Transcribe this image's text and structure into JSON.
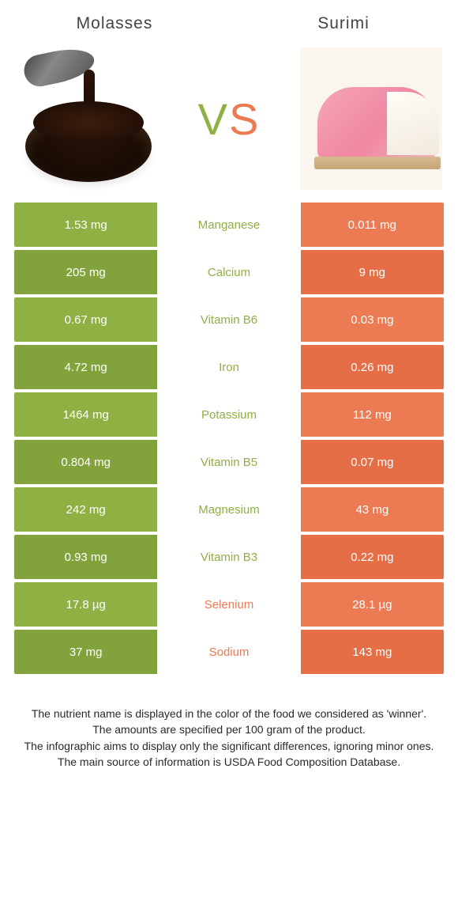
{
  "colors": {
    "left": "#8fb043",
    "left_dark": "#82a23c",
    "right": "#ec7a53",
    "right_dark": "#e56e46",
    "mid_left_text": "#8fb043",
    "mid_right_text": "#ec7a53"
  },
  "header": {
    "left_name": "Molasses",
    "right_name": "Surimi",
    "vs": "VS"
  },
  "rows": [
    {
      "nutrient": "Manganese",
      "left": "1.53 mg",
      "right": "0.011 mg",
      "winner": "left"
    },
    {
      "nutrient": "Calcium",
      "left": "205 mg",
      "right": "9 mg",
      "winner": "left"
    },
    {
      "nutrient": "Vitamin B6",
      "left": "0.67 mg",
      "right": "0.03 mg",
      "winner": "left"
    },
    {
      "nutrient": "Iron",
      "left": "4.72 mg",
      "right": "0.26 mg",
      "winner": "left"
    },
    {
      "nutrient": "Potassium",
      "left": "1464 mg",
      "right": "112 mg",
      "winner": "left"
    },
    {
      "nutrient": "Vitamin B5",
      "left": "0.804 mg",
      "right": "0.07 mg",
      "winner": "left"
    },
    {
      "nutrient": "Magnesium",
      "left": "242 mg",
      "right": "43 mg",
      "winner": "left"
    },
    {
      "nutrient": "Vitamin B3",
      "left": "0.93 mg",
      "right": "0.22 mg",
      "winner": "left"
    },
    {
      "nutrient": "Selenium",
      "left": "17.8 µg",
      "right": "28.1 µg",
      "winner": "right"
    },
    {
      "nutrient": "Sodium",
      "left": "37 mg",
      "right": "143 mg",
      "winner": "right"
    }
  ],
  "footer": {
    "l1": "The nutrient name is displayed in the color of the food we considered as 'winner'.",
    "l2": "The amounts are specified per 100 gram of the product.",
    "l3": "The infographic aims to display only the significant differences, ignoring minor ones.",
    "l4": "The main source of information is USDA Food Composition Database."
  }
}
